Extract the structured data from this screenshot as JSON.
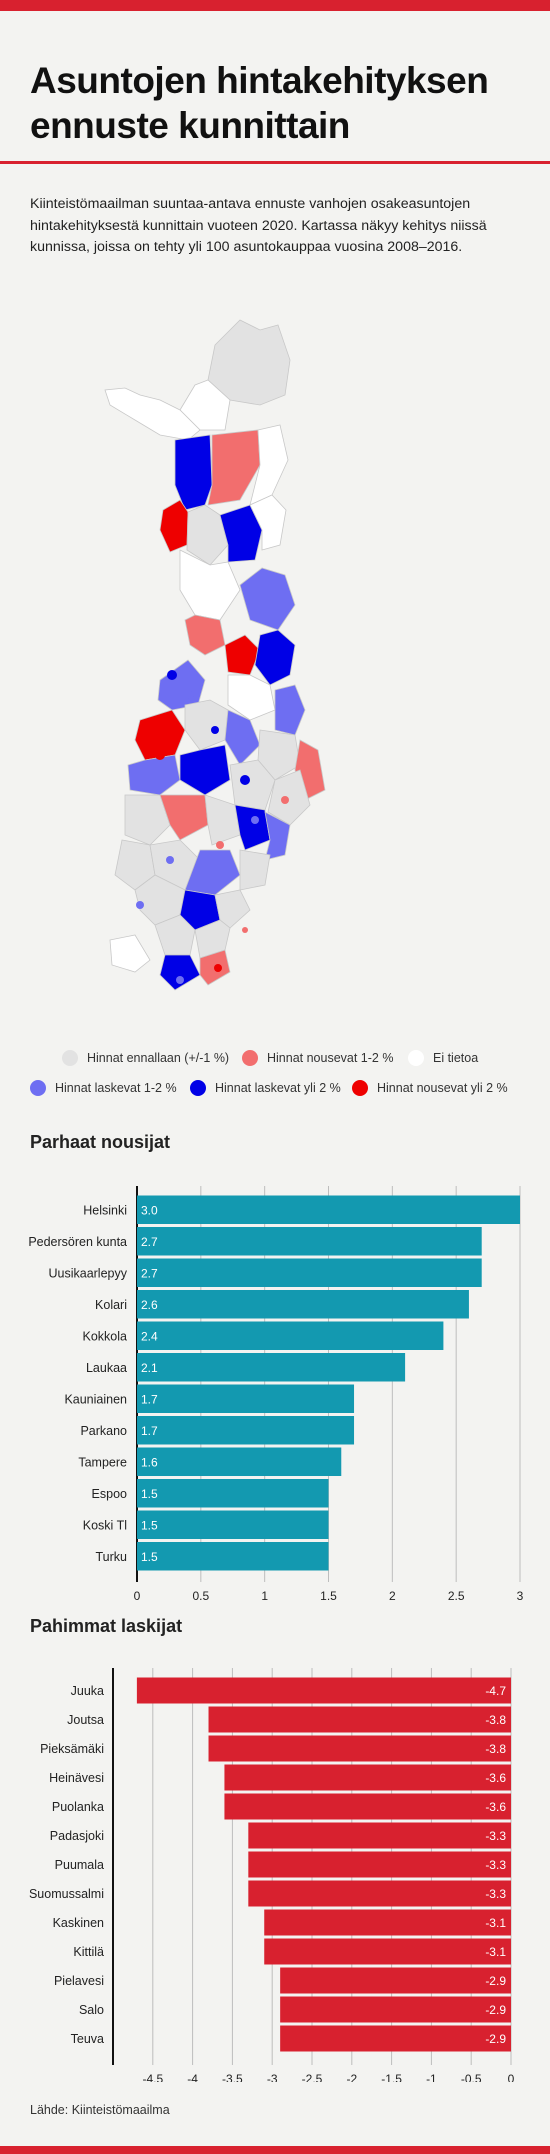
{
  "header": {
    "title_line1": "Asuntojen hintakehityksen",
    "title_line2": "ennuste kunnittain",
    "intro": "Kiinteistömaailman suuntaa-antava ennuste vanhojen osakeasuntojen hintakehityksestä kunnittain vuoteen 2020. Kartassa näkyy kehitys niissä kunnissa, joissa on tehty yli 100 asuntokauppaa vuosina 2008–2016."
  },
  "colors": {
    "stable": "#e2e2e2",
    "rise_1_2": "#f26e6e",
    "no_data": "#ffffff",
    "fall_1_2": "#6e6ef2",
    "fall_over_2": "#0000e6",
    "rise_over_2": "#ee0000",
    "bar_rise": "#1399b0",
    "bar_fall": "#d8212f",
    "accent": "#d8212f"
  },
  "legend": [
    {
      "label": "Hinnat ennallaan (+/-1 %)",
      "color": "#e2e2e2"
    },
    {
      "label": "Hinnat nousevat 1-2 %",
      "color": "#f26e6e"
    },
    {
      "label": "Ei tietoa",
      "color": "#ffffff"
    },
    {
      "label": "Hinnat laskevat 1-2 %",
      "color": "#6e6ef2"
    },
    {
      "label": "Hinnat laskevat yli 2 %",
      "color": "#0000e6"
    },
    {
      "label": "Hinnat nousevat yli 2 %",
      "color": "#ee0000"
    }
  ],
  "sections": {
    "rise_title": "Parhaat nousijat",
    "fall_title": "Pahimmat laskijat"
  },
  "chart_data": [
    {
      "type": "bar",
      "orientation": "horizontal",
      "title": "Parhaat nousijat",
      "categories": [
        "Helsinki",
        "Pedersören kunta",
        "Uusikaarlepyy",
        "Kolari",
        "Kokkola",
        "Laukaa",
        "Kauniainen",
        "Parkano",
        "Tampere",
        "Espoo",
        "Koski Tl",
        "Turku"
      ],
      "values": [
        3.0,
        2.7,
        2.7,
        2.6,
        2.4,
        2.1,
        1.7,
        1.7,
        1.6,
        1.5,
        1.5,
        1.5
      ],
      "value_labels": [
        "3.0",
        "2.7",
        "2.7",
        "2.6",
        "2.4",
        "2.1",
        "1.7",
        "1.7",
        "1.6",
        "1.5",
        "1.5",
        "1.5"
      ],
      "xlim": [
        0,
        3
      ],
      "ticks": [
        0,
        0.5,
        1,
        1.5,
        2,
        2.5,
        3
      ],
      "tick_labels": [
        "0",
        "0.5",
        "1",
        "1.5",
        "2",
        "2.5",
        "3"
      ],
      "grid": true,
      "color": "#1399b0"
    },
    {
      "type": "bar",
      "orientation": "horizontal",
      "title": "Pahimmat laskijat",
      "categories": [
        "Juuka",
        "Joutsa",
        "Pieksämäki",
        "Heinävesi",
        "Puolanka",
        "Padasjoki",
        "Puumala",
        "Suomussalmi",
        "Kaskinen",
        "Kittilä",
        "Pielavesi",
        "Salo",
        "Teuva"
      ],
      "values": [
        -4.7,
        -3.8,
        -3.8,
        -3.6,
        -3.6,
        -3.3,
        -3.3,
        -3.3,
        -3.1,
        -3.1,
        -2.9,
        -2.9,
        -2.9
      ],
      "value_labels": [
        "-4.7",
        "-3.8",
        "-3.8",
        "-3.6",
        "-3.6",
        "-3.3",
        "-3.3",
        "-3.3",
        "-3.1",
        "-3.1",
        "-2.9",
        "-2.9",
        "-2.9"
      ],
      "xlim": [
        -5,
        0
      ],
      "ticks": [
        -4.5,
        -4,
        -3.5,
        -3,
        -2.5,
        -2,
        -1.5,
        -1,
        -0.5,
        0
      ],
      "tick_labels": [
        "-4.5",
        "-4",
        "-3.5",
        "-3",
        "-2.5",
        "-2",
        "-1.5",
        "-1",
        "-0.5",
        "0"
      ],
      "grid": true,
      "color": "#d8212f"
    }
  ],
  "footer": {
    "source": "Lähde: Kiinteistömaailma"
  }
}
